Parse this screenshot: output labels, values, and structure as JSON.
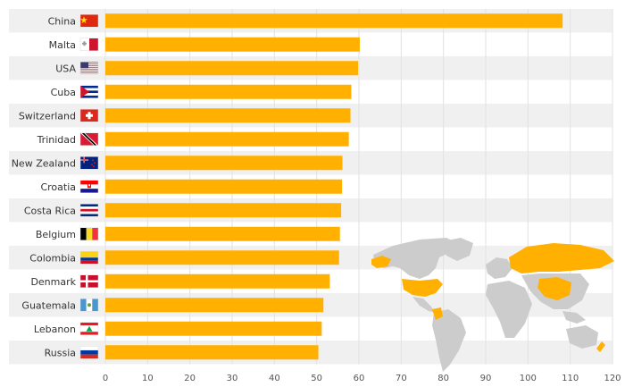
{
  "chart_data": {
    "type": "bar",
    "orientation": "horizontal",
    "categories": [
      "China",
      "Malta",
      "USA",
      "Cuba",
      "Switzerland",
      "Trinidad",
      "New Zealand",
      "Croatia",
      "Costa Rica",
      "Belgium",
      "Colombia",
      "Denmark",
      "Guatemala",
      "Lebanon",
      "Russia"
    ],
    "values": [
      108.2,
      60.2,
      59.8,
      58.2,
      58.0,
      57.6,
      56.1,
      56.0,
      55.8,
      55.5,
      55.3,
      53.1,
      51.6,
      51.2,
      50.4
    ],
    "xlim": [
      0,
      120
    ],
    "xticks": [
      0,
      10,
      20,
      30,
      40,
      50,
      60,
      70,
      80,
      90,
      100,
      110,
      120
    ],
    "colors": {
      "bar": "#FFB000",
      "band": "#F0F0F0",
      "map_land": "#CCCCCC",
      "map_highlight": "#FFB000"
    },
    "flag_icons": [
      "china-flag-icon",
      "malta-flag-icon",
      "usa-flag-icon",
      "cuba-flag-icon",
      "switzerland-flag-icon",
      "trinidad-flag-icon",
      "new-zealand-flag-icon",
      "croatia-flag-icon",
      "costa-rica-flag-icon",
      "belgium-flag-icon",
      "colombia-flag-icon",
      "denmark-flag-icon",
      "guatemala-flag-icon",
      "lebanon-flag-icon",
      "russia-flag-icon"
    ],
    "grid": true
  }
}
